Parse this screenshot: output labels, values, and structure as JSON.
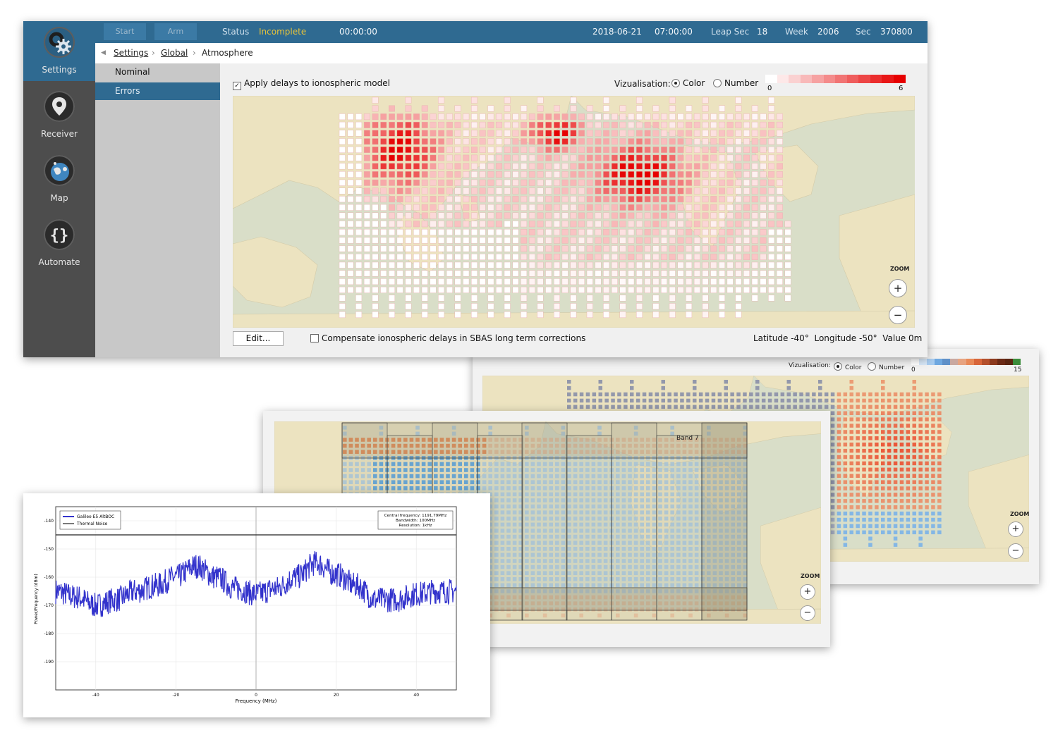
{
  "sidebar": {
    "items": [
      {
        "label": "Settings",
        "icon": "gear-icon"
      },
      {
        "label": "Receiver",
        "icon": "location-pin-icon"
      },
      {
        "label": "Map",
        "icon": "globe-icon"
      },
      {
        "label": "Automate",
        "icon": "braces-icon"
      }
    ]
  },
  "topbar": {
    "start_label": "Start",
    "arm_label": "Arm",
    "status_label": "Status",
    "status_value": "Incomplete",
    "elapsed": "00:00:00",
    "date": "2018-06-21",
    "time": "07:00:00",
    "leap_label": "Leap Sec",
    "leap_value": "18",
    "week_label": "Week",
    "week_value": "2006",
    "sec_label": "Sec",
    "sec_value": "370800"
  },
  "breadcrumb": {
    "items": [
      "Settings",
      "Global",
      "Atmosphere"
    ]
  },
  "subnav": {
    "items": [
      "Nominal",
      "Errors"
    ]
  },
  "panel": {
    "apply_label": "Apply delays to ionospheric model",
    "viz_label": "Vizualisation:",
    "color_option": "Color",
    "number_option": "Number",
    "scale_min": "0",
    "scale_max": "6",
    "zoom_label": "ZOOM",
    "zoom_in": "+",
    "zoom_out": "−",
    "edit_label": "Edit...",
    "compensate_label": "Compensate ionospheric delays in SBAS long term corrections",
    "lat_label": "Latitude",
    "lat_value": "-40°",
    "lon_label": "Longitude",
    "lon_value": "-50°",
    "val_label": "Value",
    "val_value": "0m"
  },
  "window2": {
    "viz_label": "Vizualisation:",
    "color_option": "Color",
    "number_option": "Number",
    "scale_min": "0",
    "scale_max": "15",
    "zoom_label": "ZOOM",
    "zoom_in": "+",
    "zoom_out": "−"
  },
  "window3": {
    "band_label": "Band 7",
    "zoom_label": "ZOOM",
    "zoom_in": "+",
    "zoom_out": "−"
  },
  "colors": {
    "accent": "#2f6a91",
    "status_incomplete": "#e8c43a",
    "ionosphere_max": "#e60000",
    "spectrum_line": "#3333cc"
  },
  "chart_data": {
    "type": "line",
    "xlabel": "Frequency (MHz)",
    "ylabel": "Power/Frequency (dBm)",
    "xlim": [
      -50,
      50
    ],
    "ylim": [
      -200,
      -135
    ],
    "xticks": [
      -40,
      -20,
      0,
      20,
      40
    ],
    "yticks": [
      -140,
      -150,
      -160,
      -170,
      -180,
      -190
    ],
    "legend": [
      "Galileo E5 AltBOC",
      "Thermal Noise"
    ],
    "legend_position": "top-left",
    "info": [
      "Central frequency: 1191.79MHz",
      "Bandwidth: 100MHz",
      "Resolution: 1kHz"
    ],
    "grid": true,
    "series": [
      {
        "name": "Galileo E5 AltBOC",
        "x": [
          -50,
          -45,
          -40,
          -35,
          -30,
          -25,
          -20,
          -15,
          -10,
          -5,
          0,
          5,
          10,
          15,
          20,
          25,
          30,
          35,
          40,
          45,
          50
        ],
        "y": [
          -165,
          -167,
          -170,
          -168,
          -165,
          -163,
          -160,
          -156,
          -160,
          -164,
          -166,
          -164,
          -160,
          -155,
          -159,
          -163,
          -168,
          -168,
          -166,
          -165,
          -165
        ]
      },
      {
        "name": "Thermal Noise",
        "x": [
          -50,
          50
        ],
        "y": [
          -145,
          -145
        ]
      }
    ]
  }
}
